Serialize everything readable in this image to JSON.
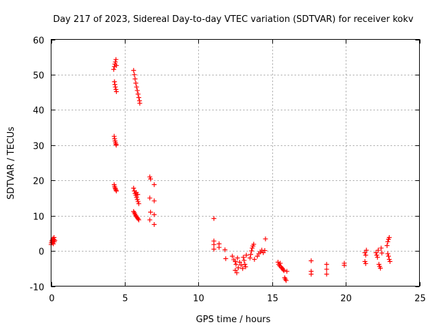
{
  "chart_data": {
    "type": "scatter",
    "title": "Day 217 of 2023, Sidereal Day-to-day VTEC variation (SDTVAR) for receiver kokv",
    "xlabel": "GPS time / hours",
    "ylabel": "SDTVAR / TECUs",
    "xlim": [
      0,
      25
    ],
    "ylim": [
      -10,
      60
    ],
    "xticks": [
      0,
      5,
      10,
      15,
      20,
      25
    ],
    "yticks": [
      -10,
      0,
      10,
      20,
      30,
      40,
      50,
      60
    ],
    "grid": true,
    "marker": "plus",
    "color": "#ff0000",
    "series": [
      {
        "name": "SDTVAR",
        "points": [
          [
            0.0,
            1.8
          ],
          [
            0.02,
            2.3
          ],
          [
            0.05,
            2.8
          ],
          [
            0.08,
            3.1
          ],
          [
            0.1,
            2.5
          ],
          [
            0.12,
            3.5
          ],
          [
            0.15,
            2.0
          ],
          [
            0.18,
            3.2
          ],
          [
            0.2,
            3.8
          ],
          [
            0.22,
            2.6
          ],
          [
            0.25,
            3.0
          ],
          [
            4.25,
            51.5
          ],
          [
            4.3,
            52.3
          ],
          [
            4.33,
            53.0
          ],
          [
            4.36,
            53.6
          ],
          [
            4.4,
            54.3
          ],
          [
            4.43,
            52.6
          ],
          [
            4.3,
            48.0
          ],
          [
            4.33,
            47.2
          ],
          [
            4.36,
            46.5
          ],
          [
            4.4,
            45.8
          ],
          [
            4.43,
            45.2
          ],
          [
            4.28,
            32.5
          ],
          [
            4.31,
            31.8
          ],
          [
            4.34,
            31.2
          ],
          [
            4.37,
            30.7
          ],
          [
            4.4,
            30.3
          ],
          [
            4.42,
            30.0
          ],
          [
            4.28,
            18.8
          ],
          [
            4.31,
            18.3
          ],
          [
            4.34,
            17.9
          ],
          [
            4.37,
            17.6
          ],
          [
            4.4,
            17.3
          ],
          [
            4.43,
            17.0
          ],
          [
            5.6,
            51.2
          ],
          [
            5.65,
            50.0
          ],
          [
            5.7,
            48.8
          ],
          [
            5.75,
            47.6
          ],
          [
            5.8,
            46.5
          ],
          [
            5.85,
            45.5
          ],
          [
            5.9,
            44.5
          ],
          [
            5.95,
            43.5
          ],
          [
            6.0,
            42.6
          ],
          [
            6.02,
            41.9
          ],
          [
            5.6,
            17.8
          ],
          [
            5.65,
            17.0
          ],
          [
            5.7,
            16.3
          ],
          [
            5.75,
            15.8
          ],
          [
            5.8,
            15.2
          ],
          [
            5.85,
            14.6
          ],
          [
            5.9,
            14.0
          ],
          [
            5.95,
            13.4
          ],
          [
            5.78,
            16.6
          ],
          [
            5.88,
            16.0
          ],
          [
            5.6,
            11.2
          ],
          [
            5.65,
            10.8
          ],
          [
            5.7,
            10.4
          ],
          [
            5.75,
            10.0
          ],
          [
            5.8,
            9.7
          ],
          [
            5.85,
            9.4
          ],
          [
            5.9,
            9.1
          ],
          [
            5.95,
            8.8
          ],
          [
            6.7,
            21.0
          ],
          [
            6.75,
            20.4
          ],
          [
            7.0,
            18.8
          ],
          [
            6.7,
            15.0
          ],
          [
            7.0,
            14.2
          ],
          [
            6.75,
            11.0
          ],
          [
            7.0,
            10.3
          ],
          [
            6.7,
            8.8
          ],
          [
            7.0,
            7.5
          ],
          [
            11.05,
            9.2
          ],
          [
            11.05,
            2.8
          ],
          [
            11.05,
            1.8
          ],
          [
            11.05,
            0.5
          ],
          [
            11.4,
            2.0
          ],
          [
            11.4,
            1.0
          ],
          [
            11.8,
            0.3
          ],
          [
            11.85,
            -2.2
          ],
          [
            12.3,
            -1.5
          ],
          [
            12.4,
            -2.5
          ],
          [
            12.5,
            -3.0
          ],
          [
            12.5,
            -5.5
          ],
          [
            12.6,
            -6.2
          ],
          [
            12.55,
            -3.8
          ],
          [
            12.65,
            -2.0
          ],
          [
            12.7,
            -4.8
          ],
          [
            12.8,
            -3.2
          ],
          [
            12.9,
            -4.0
          ],
          [
            13.0,
            -5.0
          ],
          [
            13.05,
            -1.8
          ],
          [
            13.1,
            -2.7
          ],
          [
            13.15,
            -3.8
          ],
          [
            13.2,
            -4.5
          ],
          [
            13.25,
            -1.2
          ],
          [
            13.5,
            -2.0
          ],
          [
            13.55,
            -1.0
          ],
          [
            13.6,
            0.0
          ],
          [
            13.65,
            0.8
          ],
          [
            13.7,
            1.4
          ],
          [
            13.75,
            1.9
          ],
          [
            13.8,
            -2.4
          ],
          [
            14.0,
            -1.5
          ],
          [
            14.1,
            -0.8
          ],
          [
            14.2,
            -0.3
          ],
          [
            14.3,
            0.2
          ],
          [
            14.4,
            -0.5
          ],
          [
            14.5,
            0.1
          ],
          [
            14.55,
            3.4
          ],
          [
            15.4,
            -3.2
          ],
          [
            15.45,
            -3.8
          ],
          [
            15.5,
            -4.2
          ],
          [
            15.55,
            -3.5
          ],
          [
            15.6,
            -4.5
          ],
          [
            15.65,
            -4.8
          ],
          [
            15.7,
            -5.0
          ],
          [
            15.75,
            -5.3
          ],
          [
            15.8,
            -5.6
          ],
          [
            15.85,
            -7.6
          ],
          [
            15.9,
            -8.0
          ],
          [
            15.95,
            -8.4
          ],
          [
            16.0,
            -5.8
          ],
          [
            17.65,
            -2.8
          ],
          [
            17.65,
            -5.8
          ],
          [
            17.65,
            -6.6
          ],
          [
            18.7,
            -3.8
          ],
          [
            18.7,
            -5.2
          ],
          [
            18.7,
            -6.6
          ],
          [
            19.9,
            -3.5
          ],
          [
            19.9,
            -4.1
          ],
          [
            21.3,
            -0.5
          ],
          [
            21.35,
            -1.2
          ],
          [
            21.3,
            -3.0
          ],
          [
            21.35,
            -3.6
          ],
          [
            21.4,
            0.2
          ],
          [
            22.05,
            -0.5
          ],
          [
            22.1,
            -1.2
          ],
          [
            22.15,
            -1.8
          ],
          [
            22.2,
            0.2
          ],
          [
            22.25,
            -3.8
          ],
          [
            22.3,
            -4.4
          ],
          [
            22.35,
            -4.9
          ],
          [
            22.4,
            0.8
          ],
          [
            22.45,
            -0.6
          ],
          [
            22.8,
            1.5
          ],
          [
            22.85,
            2.6
          ],
          [
            22.9,
            3.3
          ],
          [
            22.95,
            3.8
          ],
          [
            22.85,
            -0.8
          ],
          [
            22.9,
            -1.5
          ],
          [
            22.95,
            -2.4
          ],
          [
            23.0,
            -3.0
          ]
        ]
      }
    ]
  }
}
